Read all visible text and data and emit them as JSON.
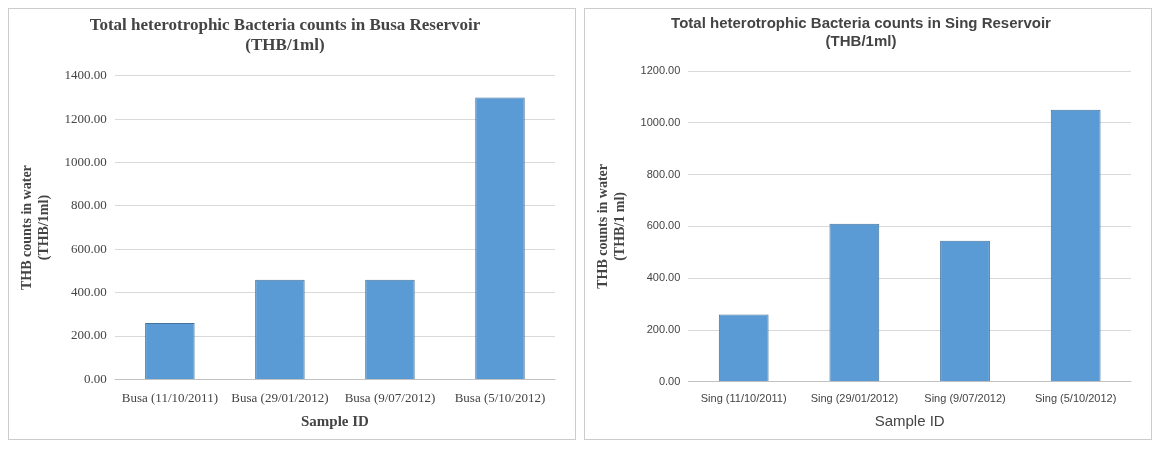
{
  "chart_data": [
    {
      "type": "bar",
      "title": "Total heterotrophic Bacteria counts in Busa Reservoir\n(THB/1ml)",
      "xlabel": "Sample ID",
      "ylabel": "THB counts in water\n(THB/1ml)",
      "categories": [
        "Busa (11/10/2011)",
        "Busa (29/01/2012)",
        "Busa (9/07/2012)",
        "Busa (5/10/2012)"
      ],
      "values": [
        260,
        460,
        460,
        1300
      ],
      "color": "#5b9bd5",
      "ylim": [
        0,
        1400
      ],
      "yticks": [
        {
          "value": 0,
          "label": "0.00"
        },
        {
          "value": 200,
          "label": "200.00"
        },
        {
          "value": 400,
          "label": "400.00"
        },
        {
          "value": 600,
          "label": "600.00"
        },
        {
          "value": 800,
          "label": "800.00"
        },
        {
          "value": 1000,
          "label": "1000.00"
        },
        {
          "value": 1200,
          "label": "1200.00"
        },
        {
          "value": 1400,
          "label": "1400.00"
        }
      ],
      "grid": "y"
    },
    {
      "type": "bar",
      "title": "Total heterotrophic Bacteria counts in Sing Reservoir\n(THB/1ml)",
      "xlabel": "Sample ID",
      "ylabel": "THB counts in water\n(THB/1 ml)",
      "categories": [
        "Sing (11/10/2011)",
        "Sing (29/01/2012)",
        "Sing (9/07/2012)",
        "Sing (5/10/2012)"
      ],
      "values": [
        260,
        610,
        545,
        1050
      ],
      "color": "#5b9bd5",
      "ylim": [
        0,
        1200
      ],
      "yticks": [
        {
          "value": 0,
          "label": "0.00"
        },
        {
          "value": 200,
          "label": "200.00"
        },
        {
          "value": 400,
          "label": "400.00"
        },
        {
          "value": 600,
          "label": "600.00"
        },
        {
          "value": 800,
          "label": "800.00"
        },
        {
          "value": 1000,
          "label": "1000.00"
        },
        {
          "value": 1200,
          "label": "1200.00"
        }
      ],
      "grid": "y"
    }
  ]
}
